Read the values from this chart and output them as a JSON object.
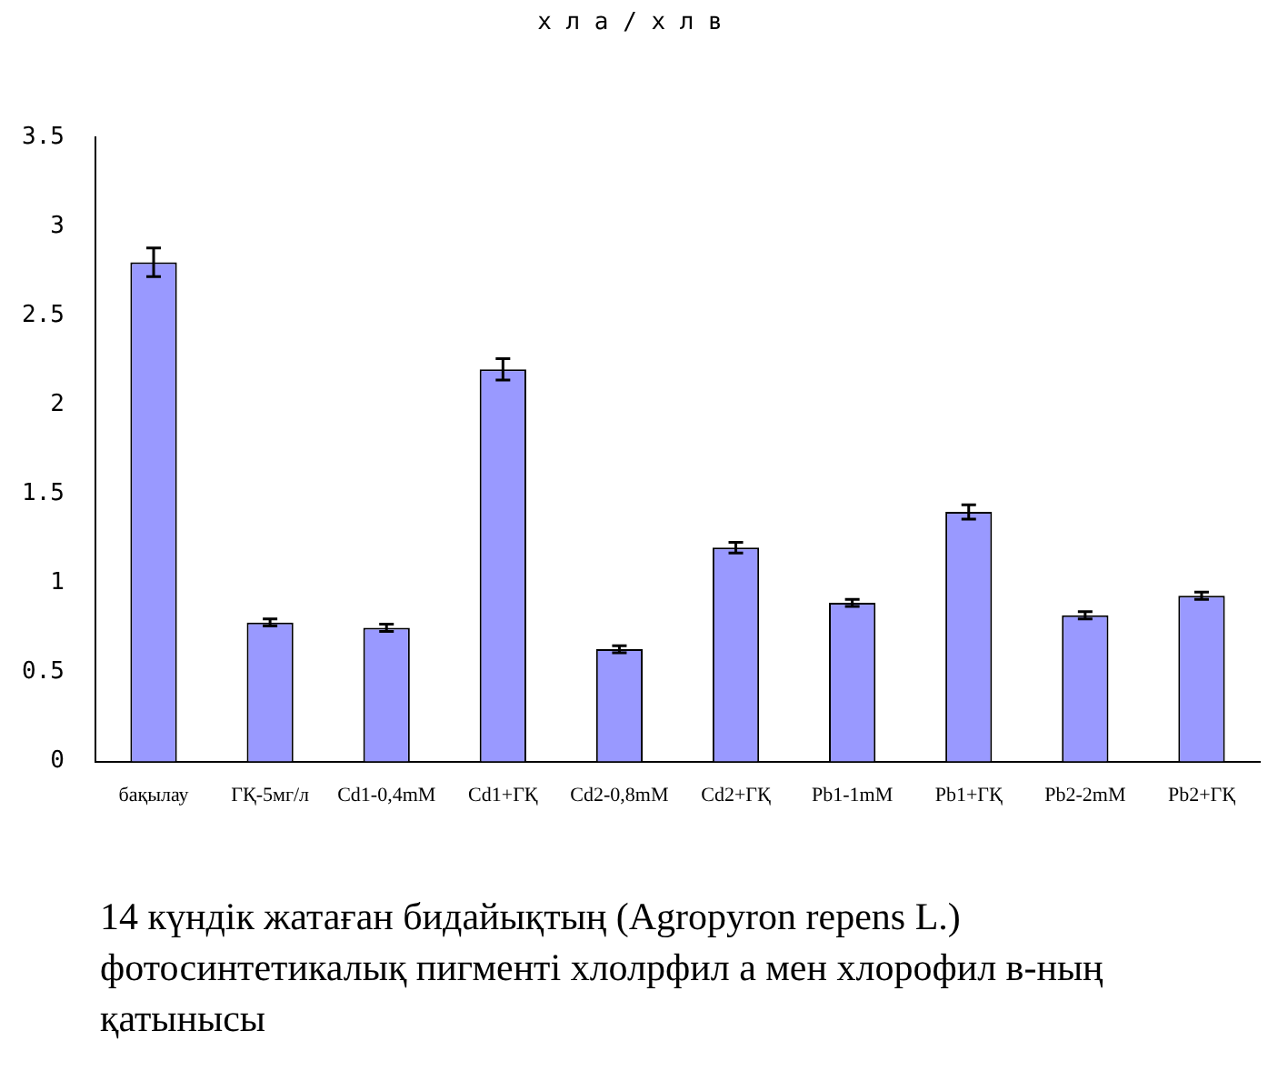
{
  "chart_data": {
    "type": "bar",
    "title": "х л а / х л в",
    "categories": [
      "бақылау",
      "ГҚ-5мг/л",
      "Cd1-0,4mM",
      "Cd1+ГҚ",
      "Cd2-0,8mM",
      "Cd2+ГҚ",
      "Pb1-1mM",
      "Pb1+ГҚ",
      "Pb2-2mM",
      "Pb2+ГҚ"
    ],
    "values": [
      2.8,
      0.78,
      0.75,
      2.2,
      0.63,
      1.2,
      0.89,
      1.4,
      0.82,
      0.93
    ],
    "errors": [
      0.08,
      0.02,
      0.02,
      0.06,
      0.02,
      0.03,
      0.02,
      0.04,
      0.02,
      0.02
    ],
    "color": "#9999ff",
    "ylim": [
      0,
      3.5
    ],
    "yticks": [
      0,
      0.5,
      1,
      1.5,
      2,
      2.5,
      3,
      3.5
    ],
    "grid": false,
    "legend": false,
    "annotations": [
      "14 күндік жатаған бидайықтың (Agropyron repens L.) фотосинтетикалық пигменті хлолрфил а мен хлорофил в-ның қатынысы"
    ]
  }
}
